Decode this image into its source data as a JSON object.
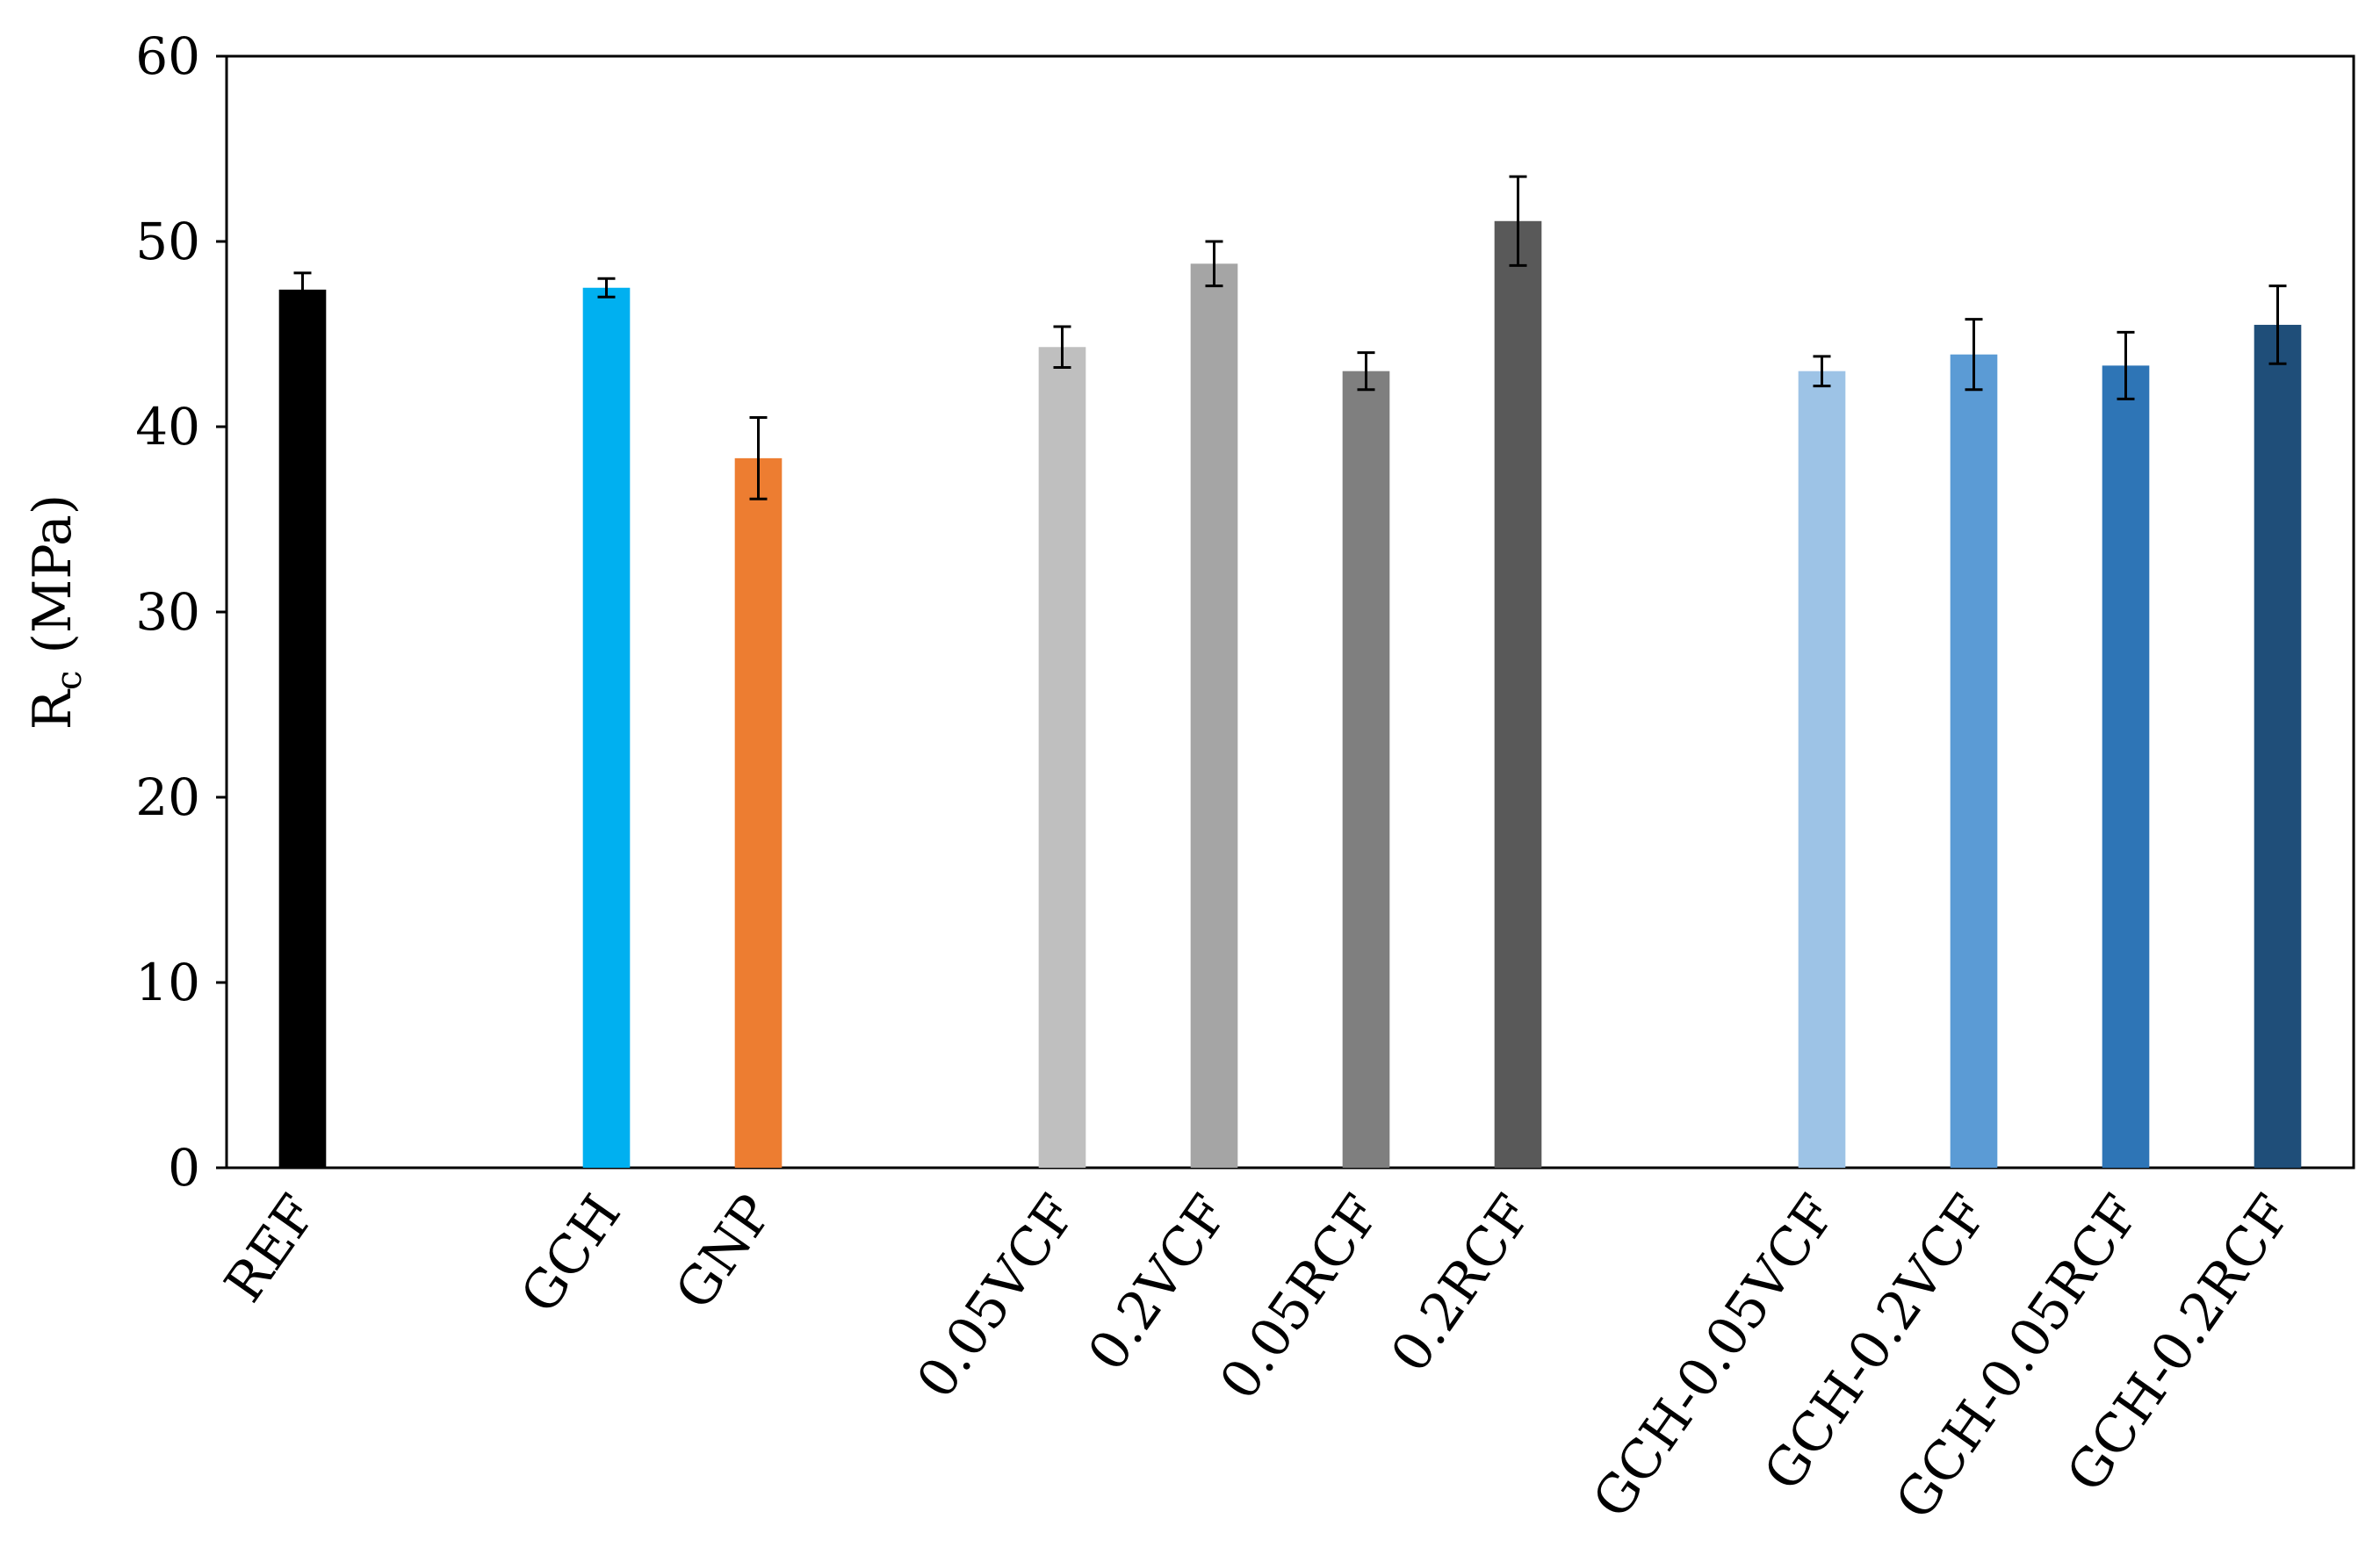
{
  "chart_data": {
    "type": "bar",
    "ylabel": "R",
    "ylabel_sub": "c",
    "ylabel_unit": " (MPa)",
    "ylim": [
      0,
      60
    ],
    "yticks": [
      0,
      10,
      20,
      30,
      40,
      50,
      60
    ],
    "grid": false,
    "x_slots": 14,
    "bars": [
      {
        "category": "REF",
        "slot": 0,
        "value": 47.4,
        "error": 0.9,
        "color": "#000000"
      },
      {
        "category": "GCH",
        "slot": 2,
        "value": 47.5,
        "error": 0.5,
        "color": "#00b0f0"
      },
      {
        "category": "GNP",
        "slot": 3,
        "value": 38.3,
        "error": 2.2,
        "color": "#ed7d31"
      },
      {
        "category": "0.05VCF",
        "slot": 5,
        "value": 44.3,
        "error": 1.1,
        "color": "#bfbfbf"
      },
      {
        "category": "0.2VCF",
        "slot": 6,
        "value": 48.8,
        "error": 1.2,
        "color": "#a5a5a5"
      },
      {
        "category": "0.05RCF",
        "slot": 7,
        "value": 43.0,
        "error": 1.0,
        "color": "#7f7f7f"
      },
      {
        "category": "0.2RCF",
        "slot": 8,
        "value": 51.1,
        "error": 2.4,
        "color": "#595959"
      },
      {
        "category": "GCH-0.05VCF",
        "slot": 10,
        "value": 43.0,
        "error": 0.8,
        "color": "#9dc3e6"
      },
      {
        "category": "GCH-0.2VCF",
        "slot": 11,
        "value": 43.9,
        "error": 1.9,
        "color": "#5b9bd5"
      },
      {
        "category": "GCH-0.05RCF",
        "slot": 12,
        "value": 43.3,
        "error": 1.8,
        "color": "#2e75b6"
      },
      {
        "category": "GCH-0.2RCF",
        "slot": 13,
        "value": 45.5,
        "error": 2.1,
        "color": "#1f4e79"
      }
    ]
  }
}
